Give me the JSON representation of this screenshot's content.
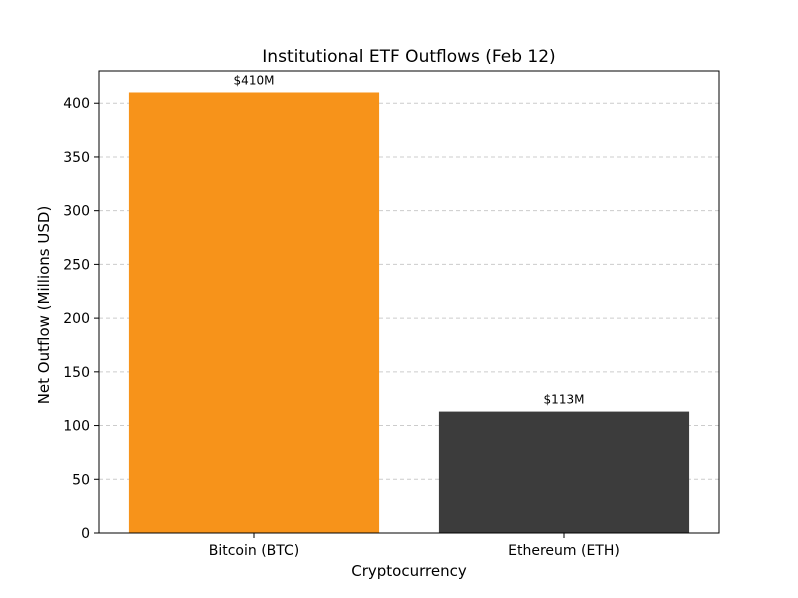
{
  "chart_data": {
    "type": "bar",
    "title": "Institutional ETF Outflows (Feb 12)",
    "xlabel": "Cryptocurrency",
    "ylabel": "Net Outflow (Millions USD)",
    "categories": [
      "Bitcoin (BTC)",
      "Ethereum (ETH)"
    ],
    "values": [
      410,
      113
    ],
    "value_labels": [
      "$410M",
      "$113M"
    ],
    "colors": [
      "#f7931a",
      "#3c3c3c"
    ],
    "ylim": [
      0,
      430
    ],
    "yticks": [
      0,
      50,
      100,
      150,
      200,
      250,
      300,
      350,
      400
    ],
    "grid": {
      "y": true,
      "x": false,
      "style": "dashed"
    },
    "legend": "none"
  }
}
